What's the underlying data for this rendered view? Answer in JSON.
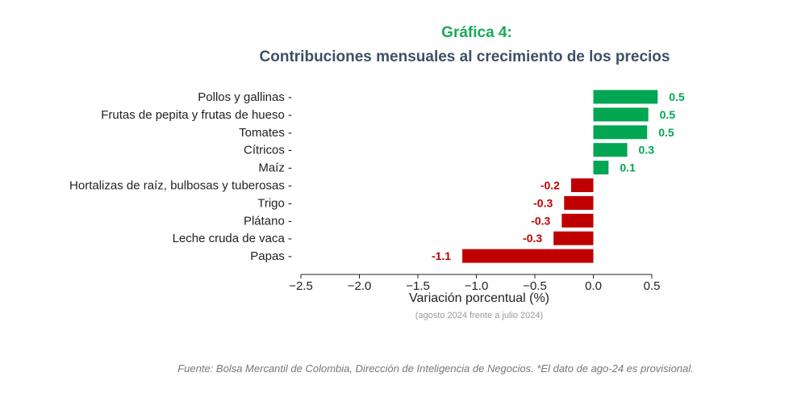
{
  "title": "Gráfica 4:",
  "subtitle": "Contribuciones mensuales al crecimiento de los precios",
  "xlabel": "Variación porcentual (%)",
  "xlabel_note": "(agosto 2024 frente a julio 2024)",
  "source": "Fuente: Bolsa Mercantil de Colombia, Dirección de Inteligencia de Negocios. *El dato de ago-24 es provisional.",
  "colors": {
    "positive": "#00a651",
    "negative": "#c00000"
  },
  "chart_data": {
    "type": "bar",
    "orientation": "horizontal",
    "title": "Gráfica 4:",
    "subtitle": "Contribuciones mensuales al crecimiento de los precios",
    "xlabel": "Variación porcentual (%)",
    "ylabel": "",
    "categories": [
      "Pollos y gallinas",
      "Frutas de pepita y frutas de hueso",
      "Tomates",
      "Cítricos",
      "Maíz",
      "Hortalizas de raíz, bulbosas y tuberosas",
      "Trigo",
      "Plátano",
      "Leche cruda de vaca",
      "Papas"
    ],
    "values": [
      0.55,
      0.47,
      0.46,
      0.29,
      0.13,
      -0.19,
      -0.25,
      -0.27,
      -0.34,
      -1.12
    ],
    "labels": [
      "0.5",
      "0.5",
      "0.5",
      "0.3",
      "0.1",
      "-0.2",
      "-0.3",
      "-0.3",
      "-0.3",
      "-1.1"
    ],
    "xlim": [
      -2.5,
      0.5
    ],
    "xticks": [
      -2.5,
      -2.0,
      -1.5,
      -1.0,
      -0.5,
      0.0,
      0.5
    ],
    "xtick_labels": [
      "−2.5",
      "−2.0",
      "−1.5",
      "−1.0",
      "−0.5",
      "0.0",
      "0.5"
    ],
    "grid": false,
    "legend": "none"
  }
}
